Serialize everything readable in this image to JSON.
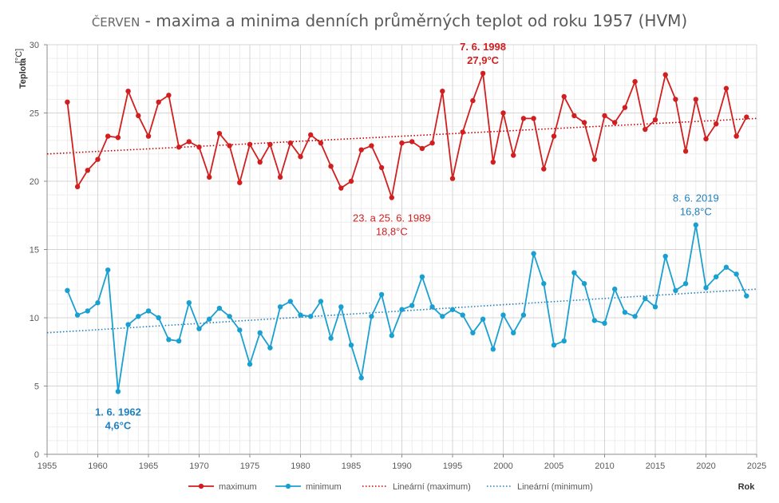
{
  "chart_data": {
    "type": "line",
    "title_prefix": "ČERVEN",
    "title_main": " - maxima a minima denních průměrných teplot od roku 1957 (HVM)",
    "ylabel": "Teplota",
    "yunit": "[°C]",
    "xlabel": "Rok",
    "xlim": [
      1955,
      2025
    ],
    "ylim": [
      0,
      30
    ],
    "xticks": [
      "1955",
      "1960",
      "1965",
      "1970",
      "1975",
      "1980",
      "1985",
      "1990",
      "1995",
      "2000",
      "2005",
      "2010",
      "2015",
      "2020",
      "2025"
    ],
    "yticks": [
      "0",
      "5",
      "10",
      "15",
      "20",
      "25",
      "30"
    ],
    "grid": true,
    "legend_position": "bottom",
    "years": [
      1957,
      1958,
      1959,
      1960,
      1961,
      1962,
      1963,
      1964,
      1965,
      1966,
      1967,
      1968,
      1969,
      1970,
      1971,
      1972,
      1973,
      1974,
      1975,
      1976,
      1977,
      1978,
      1979,
      1980,
      1981,
      1982,
      1983,
      1984,
      1985,
      1986,
      1987,
      1988,
      1989,
      1990,
      1991,
      1992,
      1993,
      1994,
      1995,
      1996,
      1997,
      1998,
      1999,
      2000,
      2001,
      2002,
      2003,
      2004,
      2005,
      2006,
      2007,
      2008,
      2009,
      2010,
      2011,
      2012,
      2013,
      2014,
      2015,
      2016,
      2017,
      2018,
      2019,
      2020,
      2021,
      2022,
      2023,
      2024
    ],
    "series": [
      {
        "name": "maximum",
        "color": "#d11f1f",
        "values": [
          25.8,
          19.6,
          20.8,
          21.6,
          23.3,
          23.2,
          26.6,
          24.8,
          23.3,
          25.8,
          26.3,
          22.5,
          22.9,
          22.5,
          20.3,
          23.5,
          22.6,
          19.9,
          22.7,
          21.4,
          22.7,
          20.3,
          22.8,
          21.8,
          23.4,
          22.8,
          21.1,
          19.5,
          20.0,
          22.3,
          22.6,
          21.0,
          18.8,
          22.8,
          22.9,
          22.4,
          22.8,
          26.6,
          20.2,
          23.6,
          25.9,
          27.9,
          21.4,
          25.0,
          21.9,
          24.6,
          24.6,
          20.9,
          23.3,
          26.2,
          24.8,
          24.3,
          21.6,
          24.8,
          24.3,
          25.4,
          27.3,
          23.8,
          24.5,
          27.8,
          26.0,
          22.2,
          26.0,
          23.1,
          24.2,
          26.8,
          23.3,
          24.7
        ]
      },
      {
        "name": "minimum",
        "color": "#1aa0d0",
        "values": [
          12.0,
          10.2,
          10.5,
          11.1,
          13.5,
          4.6,
          9.5,
          10.1,
          10.5,
          10.0,
          8.4,
          8.3,
          11.1,
          9.2,
          9.9,
          10.7,
          10.1,
          9.1,
          6.6,
          8.9,
          7.8,
          10.8,
          11.2,
          10.2,
          10.1,
          11.2,
          8.5,
          10.8,
          8.0,
          5.6,
          10.1,
          11.7,
          8.7,
          10.6,
          10.9,
          13.0,
          10.8,
          10.1,
          10.6,
          10.2,
          8.9,
          9.9,
          7.7,
          10.2,
          8.9,
          10.2,
          14.7,
          12.5,
          8.0,
          8.3,
          13.3,
          12.5,
          9.8,
          9.6,
          12.1,
          10.4,
          10.1,
          11.4,
          10.8,
          14.5,
          12.0,
          12.5,
          16.8,
          12.2,
          13.0,
          13.7,
          13.2,
          11.6
        ]
      },
      {
        "name": "Lineární (maximum)",
        "color": "#c00000",
        "kind": "trend",
        "from": [
          1955,
          22.0
        ],
        "to": [
          2025,
          24.6
        ]
      },
      {
        "name": "Lineární (minimum)",
        "color": "#1f7fbf",
        "kind": "trend",
        "from": [
          1955,
          8.9
        ],
        "to": [
          2025,
          12.1
        ]
      }
    ],
    "annotations": [
      {
        "id": "max-1998",
        "lines": [
          "7. 6. 1998",
          "27,9°C"
        ],
        "color": "#d11f1f",
        "bold": true,
        "anchor": [
          1998,
          27.9
        ],
        "placement": "above"
      },
      {
        "id": "max-1989",
        "lines": [
          "23. a 25. 6. 1989",
          "18,8°C"
        ],
        "color": "#d11f1f",
        "bold": false,
        "anchor": [
          1989,
          18.8
        ],
        "placement": "below"
      },
      {
        "id": "min-1962",
        "lines": [
          "1. 6. 1962",
          "4,6°C"
        ],
        "color": "#1f7fbf",
        "bold": true,
        "anchor": [
          1962,
          4.6
        ],
        "placement": "below"
      },
      {
        "id": "min-2019",
        "lines": [
          "8. 6. 2019",
          "16,8°C"
        ],
        "color": "#1f7fbf",
        "bold": false,
        "anchor": [
          2019,
          16.8
        ],
        "placement": "above"
      }
    ]
  }
}
